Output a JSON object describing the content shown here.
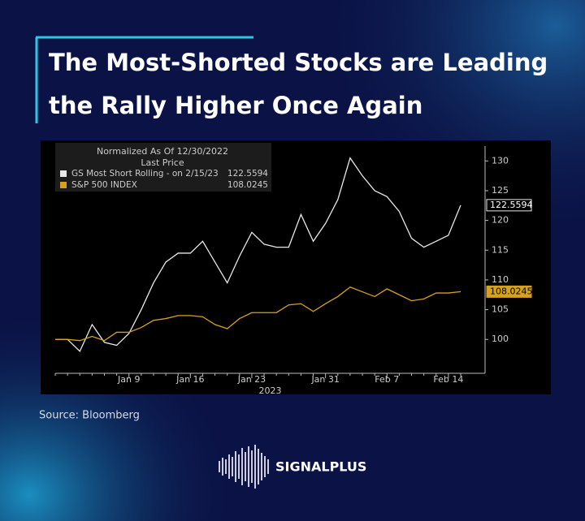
{
  "chart_data": {
    "type": "line",
    "title_lines": [
      "The Most-Shorted Stocks are Leading",
      "the Rally Higher Once Again"
    ],
    "legend_header": [
      "Normalized As Of 12/30/2022",
      "Last Price"
    ],
    "x_axis_label": "2023",
    "source": "Source:  Bloomberg",
    "brand": "SIGNALPLUS",
    "categories": [
      null,
      null,
      null,
      null,
      null,
      null,
      "Jan 9",
      null,
      null,
      null,
      null,
      "Jan 16",
      null,
      null,
      null,
      null,
      "Jan 23",
      null,
      null,
      null,
      null,
      null,
      "Jan 31",
      null,
      null,
      null,
      null,
      "Feb 7",
      null,
      null,
      null,
      null,
      "Feb 14",
      null
    ],
    "series": [
      {
        "name": "GS Most Short Rolling -  on 2/15/23",
        "color": "#e8e8e8",
        "values": [
          100,
          100,
          98,
          102.5,
          99.5,
          99,
          101,
          105,
          109.5,
          113,
          114.5,
          114.5,
          116.5,
          113,
          109.5,
          114,
          118,
          116,
          115.5,
          115.5,
          121,
          116.5,
          119.5,
          123.5,
          130.5,
          127.5,
          125,
          124,
          121.5,
          117,
          115.5,
          116.5,
          117.5,
          122.5594
        ]
      },
      {
        "name": "S&P 500 INDEX",
        "color": "#d6a21e",
        "values": [
          100,
          100,
          99.8,
          100.5,
          99.8,
          101.2,
          101.2,
          102,
          103.2,
          103.5,
          104,
          104,
          103.8,
          102.5,
          101.8,
          103.5,
          104.5,
          104.5,
          104.5,
          105.8,
          106,
          104.7,
          106,
          107.2,
          108.8,
          108,
          107.2,
          108.5,
          107.5,
          106.5,
          106.8,
          107.8,
          107.8,
          108.0245
        ]
      }
    ],
    "ylim": [
      94.3,
      132.5
    ],
    "yticks": [
      100,
      105,
      110,
      115,
      120,
      125,
      130
    ],
    "grid": false
  }
}
